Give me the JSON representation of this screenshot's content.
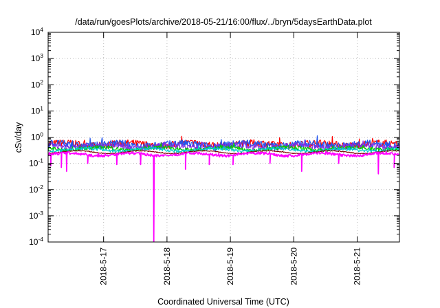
{
  "chart_data": {
    "type": "line",
    "title": "/data/run/goesPlots/archive/2018-05-21/16:00/flux/../bryn/5daysEarthData.plot",
    "xlabel": "Coordinated Universal Time (UTC)",
    "ylabel": "cSv/day",
    "x_ticks": [
      "2018-5-17",
      "2018-5-18",
      "2018-5-19",
      "2018-5-20",
      "2018-5-21"
    ],
    "y_ticks": [
      {
        "base": "10",
        "exp": "-4"
      },
      {
        "base": "10",
        "exp": "-3"
      },
      {
        "base": "10",
        "exp": "-2"
      },
      {
        "base": "10",
        "exp": "-1"
      },
      {
        "base": "10",
        "exp": "0"
      },
      {
        "base": "10",
        "exp": "1"
      },
      {
        "base": "10",
        "exp": "2"
      },
      {
        "base": "10",
        "exp": "3"
      },
      {
        "base": "10",
        "exp": "4"
      }
    ],
    "y_scale": "log",
    "ylim": [
      0.0001,
      10000
    ],
    "xlim": [
      "2018-05-16T03:00",
      "2018-05-21T16:00"
    ],
    "grid": true,
    "series": [
      {
        "color": "#ff0000",
        "level": 0.55,
        "noise": 0.45,
        "dips": []
      },
      {
        "color": "#2255ee",
        "level": 0.52,
        "noise": 0.5,
        "dips": []
      },
      {
        "color": "#8a2be2",
        "level": 0.45,
        "noise": 0.35,
        "dips": []
      },
      {
        "color": "#00cc00",
        "level": 0.37,
        "noise": 0.25,
        "dips": []
      },
      {
        "color": "#00cccc",
        "level": 0.33,
        "noise": 0.2,
        "dips": []
      },
      {
        "color": "#800000",
        "level": 0.27,
        "noise": 0.05,
        "dips": []
      },
      {
        "color": "#ff00ff",
        "level": 0.22,
        "noise": 0.15,
        "dips": [
          {
            "t": "2018-05-16T04:00",
            "y": 0.08
          },
          {
            "t": "2018-05-16T08:00",
            "y": 0.07
          },
          {
            "t": "2018-05-16T10:00",
            "y": 0.05
          },
          {
            "t": "2018-05-16T18:00",
            "y": 0.1
          },
          {
            "t": "2018-05-17T05:00",
            "y": 0.09
          },
          {
            "t": "2018-05-17T14:00",
            "y": 0.09
          },
          {
            "t": "2018-05-17T19:00",
            "y": 0.0001
          },
          {
            "t": "2018-05-18T07:00",
            "y": 0.06
          },
          {
            "t": "2018-05-18T16:00",
            "y": 0.09
          },
          {
            "t": "2018-05-19T01:00",
            "y": 0.09
          },
          {
            "t": "2018-05-19T15:00",
            "y": 0.1
          },
          {
            "t": "2018-05-20T03:00",
            "y": 0.05
          },
          {
            "t": "2018-05-20T17:00",
            "y": 0.1
          },
          {
            "t": "2018-05-21T08:00",
            "y": 0.04
          },
          {
            "t": "2018-05-21T14:00",
            "y": 0.07
          }
        ]
      }
    ]
  }
}
